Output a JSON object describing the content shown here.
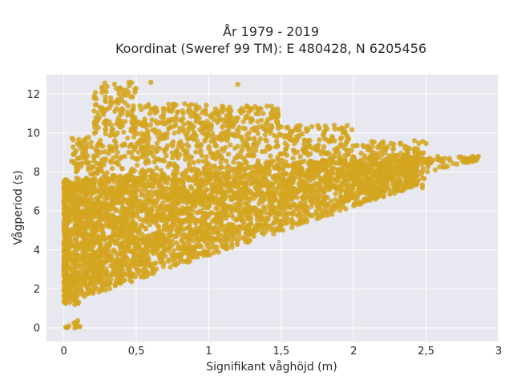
{
  "chart_data": {
    "type": "scatter",
    "title_line1": "År 1979 - 2019",
    "title_line2": "Koordinat (Sweref 99 TM): E 480428, N 6205456",
    "xlabel": "Signifikant våghöjd (m)",
    "ylabel": "Vågperiod (s)",
    "xlim": [
      -0.12,
      3.0
    ],
    "ylim": [
      -0.7,
      13.0
    ],
    "x_ticks": [
      0,
      0.5,
      1,
      1.5,
      2,
      2.5,
      3
    ],
    "x_tick_labels": [
      "0",
      "0,5",
      "1",
      "1,5",
      "2",
      "2,5",
      "3"
    ],
    "y_ticks": [
      0,
      2,
      4,
      6,
      8,
      10,
      12
    ],
    "y_tick_labels": [
      "0",
      "2",
      "4",
      "6",
      "8",
      "10",
      "12"
    ],
    "grid": true,
    "legend": "none",
    "marker_color": "#d4a520",
    "plot_bg": "#e8e8f0",
    "grid_color": "#ffffff",
    "point_count_estimate": "tens of thousands",
    "distribution_bands": [
      {
        "x_min": 0.0,
        "x_max": 0.12,
        "y_min": 0.0,
        "y_max": 0.0
      },
      {
        "x_min": 0.0,
        "x_max": 0.05,
        "y_min": 1.2,
        "y_max": 3.4
      },
      {
        "x_min": 0.05,
        "x_max": 0.2,
        "y_min": 1.0,
        "y_max": 9.8
      },
      {
        "x_min": 0.2,
        "x_max": 0.5,
        "y_min": 2.0,
        "y_max": 12.6
      },
      {
        "x_min": 0.5,
        "x_max": 1.0,
        "y_min": 3.2,
        "y_max": 11.5
      },
      {
        "x_min": 1.0,
        "x_max": 1.5,
        "y_min": 4.4,
        "y_max": 11.4
      },
      {
        "x_min": 1.5,
        "x_max": 2.0,
        "y_min": 5.8,
        "y_max": 10.4
      },
      {
        "x_min": 2.0,
        "x_max": 2.5,
        "y_min": 6.6,
        "y_max": 9.6
      },
      {
        "x_min": 2.5,
        "x_max": 2.87,
        "y_min": 8.0,
        "y_max": 8.8
      }
    ],
    "outliers": [
      [
        2.58,
        8.8
      ],
      [
        2.63,
        8.7
      ],
      [
        2.75,
        8.7
      ],
      [
        2.81,
        8.6
      ],
      [
        2.86,
        8.8
      ],
      [
        2.42,
        9.6
      ],
      [
        2.53,
        8.5
      ],
      [
        2.38,
        8.2
      ],
      [
        0.45,
        12.6
      ],
      [
        0.6,
        12.6
      ],
      [
        1.2,
        12.5
      ]
    ]
  }
}
